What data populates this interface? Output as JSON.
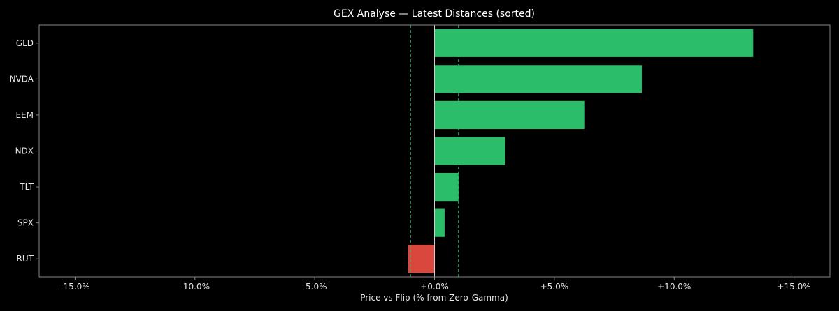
{
  "chart_data": {
    "type": "bar",
    "orientation": "horizontal",
    "title": "GEX Analyse — Latest Distances (sorted)",
    "xlabel": "Price vs Flip (% from Zero-Gamma)",
    "ylabel": "",
    "xlim": [
      -16.5,
      16.5
    ],
    "xticks": [
      -15,
      -10,
      -5,
      0,
      5,
      10,
      15
    ],
    "xtick_labels": [
      "-15.0%",
      "-10.0%",
      "-5.0%",
      "+0.0%",
      "+5.0%",
      "+10.0%",
      "+15.0%"
    ],
    "categories": [
      "GLD",
      "NVDA",
      "EEM",
      "NDX",
      "TLT",
      "SPX",
      "RUT"
    ],
    "values": [
      13.3,
      8.65,
      6.25,
      2.95,
      1.0,
      0.42,
      -1.1
    ],
    "reference_lines": [
      -1.0,
      1.0
    ],
    "grid": false,
    "colors": {
      "positive": "#2bbd6a",
      "negative": "#d9473d",
      "reference": "#2bbd6a",
      "zero_line": "#d0d0d0",
      "frame": "#888888",
      "text": "#e6e6e6",
      "background": "#000000"
    }
  }
}
